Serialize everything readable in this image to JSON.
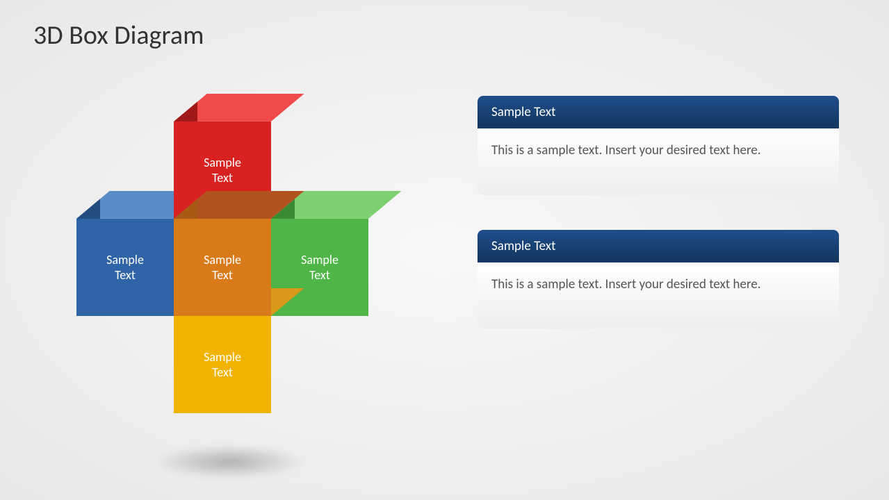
{
  "title": "3D Box Diagram",
  "diagram": {
    "type": "3d-box-cross",
    "label_fontsize": 18,
    "label_color": "#ffffff",
    "boxes": {
      "top": {
        "label": "Sample Text",
        "front": "#d92121",
        "top_face": "#f04a4a",
        "side": "#a11818"
      },
      "left": {
        "label": "Sample Text",
        "front": "#2f64a6",
        "top_face": "#5a8cc8",
        "side": "#234c80"
      },
      "center": {
        "label": "Sample Text",
        "front": "#d97a1a",
        "top_face": "#b0531e",
        "side": "#a75a12"
      },
      "right": {
        "label": "Sample Text",
        "front": "#4fb547",
        "top_face": "#7dd06f",
        "side": "#3a8a34"
      },
      "bottom": {
        "label": "Sample Text",
        "front": "#f0b400",
        "top_face": "#d99a1a",
        "side": "#c99000"
      }
    },
    "shadow_color": "rgba(0,0,0,0.25)"
  },
  "cards": [
    {
      "header": "Sample Text",
      "body": "This is a sample text. Insert your desired text here.",
      "header_bg": "linear-gradient(#1f4e8c, #12365f)",
      "body_bg": "linear-gradient(#ffffff, #eeeeee)"
    },
    {
      "header": "Sample Text",
      "body": "This is a sample text. Insert your desired text here.",
      "header_bg": "linear-gradient(#1f4e8c, #12365f)",
      "body_bg": "linear-gradient(#ffffff, #eeeeee)"
    }
  ],
  "colors": {
    "background": "#f2f2f2",
    "title_color": "#333333",
    "card_text": "#555555"
  }
}
